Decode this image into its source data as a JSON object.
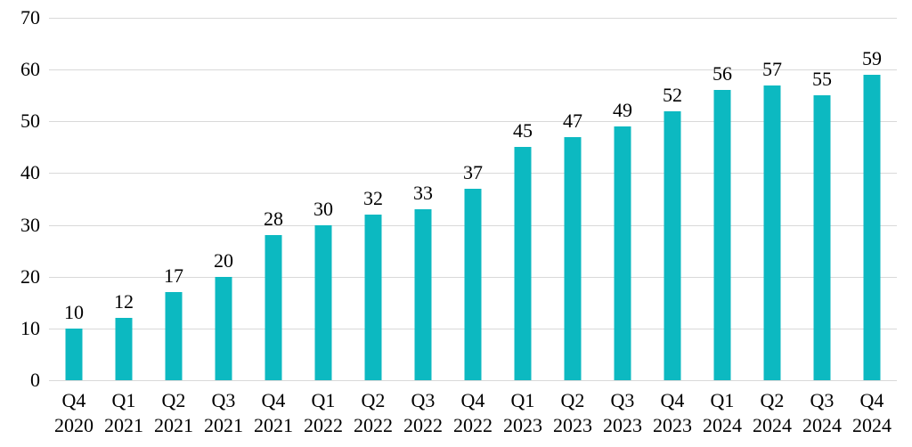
{
  "chart_data": {
    "type": "bar",
    "title": "",
    "xlabel": "",
    "ylabel": "",
    "categories": [
      "Q4 2020",
      "Q1 2021",
      "Q2 2021",
      "Q3 2021",
      "Q4 2021",
      "Q1 2022",
      "Q2 2022",
      "Q3 2022",
      "Q4 2022",
      "Q1 2023",
      "Q2 2023",
      "Q3 2023",
      "Q4 2023",
      "Q1 2024",
      "Q2 2024",
      "Q3 2024",
      "Q4 2024"
    ],
    "values": [
      10,
      12,
      17,
      20,
      28,
      30,
      32,
      33,
      37,
      45,
      47,
      49,
      52,
      56,
      57,
      55,
      59
    ],
    "data_labels_shown": true,
    "ylim": [
      0,
      70
    ],
    "yticks": [
      0,
      10,
      20,
      30,
      40,
      50,
      60,
      70
    ],
    "grid": "horizontal",
    "legend": "none",
    "colors": {
      "bar": "#0cb9c1",
      "gridline": "#d9d9d9",
      "text": "#000000",
      "background": "#ffffff"
    }
  }
}
